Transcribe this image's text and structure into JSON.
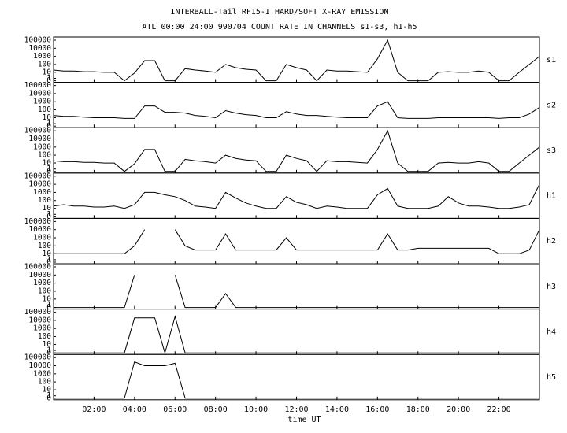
{
  "title": "INTERBALL-Tail RF15-I HARD/SOFT X-RAY EMISSION",
  "subtitle": "ATL 00:00 24:00 990704  COUNT RATE IN CHANNELS s1-s3, h1-h5",
  "chart_data": [
    {
      "type": "line",
      "name": "s1",
      "log": true,
      "color": "#000000",
      "xlim": [
        0,
        24
      ],
      "ylim": [
        0,
        100000
      ],
      "yticks": [
        0,
        1,
        10,
        100,
        1000,
        10000,
        100000
      ],
      "x": [
        0,
        0.5,
        1,
        1.5,
        2,
        2.5,
        3,
        3.5,
        4,
        4.5,
        5,
        5.5,
        6,
        6.5,
        7,
        7.5,
        8,
        8.5,
        9,
        9.5,
        10,
        10.5,
        11,
        11.5,
        12,
        12.5,
        13,
        13.5,
        14,
        14.5,
        15,
        15.5,
        16,
        16.5,
        17,
        17.5,
        18,
        18.5,
        19,
        19.5,
        20,
        20.5,
        21,
        21.5,
        22,
        22.5,
        23,
        23.5,
        24
      ],
      "values": [
        20,
        15,
        15,
        12,
        12,
        10,
        10,
        0,
        8,
        300,
        300,
        0,
        0,
        30,
        20,
        15,
        10,
        100,
        40,
        25,
        20,
        0,
        0,
        100,
        40,
        20,
        0,
        20,
        15,
        15,
        12,
        10,
        500,
        100000,
        10,
        0,
        0,
        0,
        10,
        12,
        10,
        10,
        15,
        10,
        0,
        0,
        10,
        100,
        1000
      ]
    },
    {
      "type": "line",
      "name": "s2",
      "log": true,
      "color": "#000000",
      "xlim": [
        0,
        24
      ],
      "ylim": [
        0,
        100000
      ],
      "yticks": [
        0,
        1,
        10,
        100,
        1000,
        10000,
        100000
      ],
      "x": [
        0,
        0.5,
        1,
        1.5,
        2,
        2.5,
        3,
        3.5,
        4,
        4.5,
        5,
        5.5,
        6,
        6.5,
        7,
        7.5,
        8,
        8.5,
        9,
        9.5,
        10,
        10.5,
        11,
        11.5,
        12,
        12.5,
        13,
        13.5,
        14,
        14.5,
        15,
        15.5,
        16,
        16.5,
        17,
        17.5,
        18,
        18.5,
        19,
        19.5,
        20,
        20.5,
        21,
        21.5,
        22,
        22.5,
        23,
        23.5,
        24
      ],
      "values": [
        20,
        15,
        15,
        12,
        10,
        10,
        10,
        8,
        8,
        300,
        300,
        50,
        50,
        40,
        20,
        15,
        10,
        80,
        40,
        25,
        20,
        10,
        10,
        60,
        30,
        20,
        20,
        15,
        12,
        10,
        10,
        10,
        300,
        1000,
        10,
        8,
        8,
        8,
        10,
        10,
        10,
        10,
        10,
        10,
        8,
        10,
        10,
        30,
        200
      ]
    },
    {
      "type": "line",
      "name": "s3",
      "log": true,
      "color": "#000000",
      "xlim": [
        0,
        24
      ],
      "ylim": [
        0,
        100000
      ],
      "yticks": [
        0,
        1,
        10,
        100,
        1000,
        10000,
        100000
      ],
      "x": [
        0,
        0.5,
        1,
        1.5,
        2,
        2.5,
        3,
        3.5,
        4,
        4.5,
        5,
        5.5,
        6,
        6.5,
        7,
        7.5,
        8,
        8.5,
        9,
        9.5,
        10,
        10.5,
        11,
        11.5,
        12,
        12.5,
        13,
        13.5,
        14,
        14.5,
        15,
        15.5,
        16,
        16.5,
        17,
        17.5,
        18,
        18.5,
        19,
        19.5,
        20,
        20.5,
        21,
        21.5,
        22,
        22.5,
        23,
        23.5,
        24
      ],
      "values": [
        20,
        15,
        15,
        12,
        12,
        10,
        10,
        0,
        8,
        500,
        500,
        0,
        0,
        30,
        20,
        15,
        10,
        100,
        40,
        25,
        20,
        0,
        0,
        100,
        40,
        20,
        0,
        20,
        15,
        15,
        12,
        10,
        500,
        100000,
        10,
        0,
        0,
        0,
        10,
        12,
        10,
        10,
        15,
        10,
        0,
        0,
        10,
        100,
        1000
      ]
    },
    {
      "type": "line",
      "name": "h1",
      "log": true,
      "color": "#000000",
      "xlim": [
        0,
        24
      ],
      "ylim": [
        0,
        100000
      ],
      "yticks": [
        0,
        1,
        10,
        100,
        1000,
        10000,
        100000
      ],
      "x": [
        0,
        0.5,
        1,
        1.5,
        2,
        2.5,
        3,
        3.5,
        4,
        4.5,
        5,
        5.5,
        6,
        6.5,
        7,
        7.5,
        8,
        8.5,
        9,
        9.5,
        10,
        10.5,
        11,
        11.5,
        12,
        12.5,
        13,
        13.5,
        14,
        14.5,
        15,
        15.5,
        16,
        16.5,
        17,
        17.5,
        18,
        18.5,
        19,
        19.5,
        20,
        20.5,
        21,
        21.5,
        22,
        22.5,
        23,
        23.5,
        24
      ],
      "values": [
        20,
        30,
        20,
        20,
        15,
        15,
        20,
        10,
        30,
        1000,
        1000,
        500,
        300,
        100,
        20,
        15,
        10,
        1000,
        200,
        50,
        20,
        10,
        10,
        300,
        60,
        30,
        10,
        20,
        15,
        10,
        10,
        10,
        500,
        3000,
        20,
        10,
        10,
        10,
        20,
        300,
        50,
        20,
        20,
        15,
        10,
        10,
        15,
        30,
        10000
      ]
    },
    {
      "type": "line",
      "name": "h2",
      "log": true,
      "color": "#000000",
      "xlim": [
        0,
        24
      ],
      "ylim": [
        0,
        100000
      ],
      "yticks": [
        0,
        1,
        10,
        100,
        1000,
        10000,
        100000
      ],
      "x": [
        0,
        0.5,
        1,
        1.5,
        2,
        2.5,
        3,
        3.5,
        4,
        4.5,
        5,
        5.5,
        6,
        6.5,
        7,
        7.5,
        8,
        8.5,
        9,
        9.5,
        10,
        10.5,
        11,
        11.5,
        12,
        12.5,
        13,
        13.5,
        14,
        14.5,
        15,
        15.5,
        16,
        16.5,
        17,
        17.5,
        18,
        18.5,
        19,
        19.5,
        20,
        20.5,
        21,
        21.5,
        22,
        22.5,
        23,
        23.5,
        24
      ],
      "values": [
        10,
        10,
        10,
        10,
        10,
        10,
        10,
        10,
        100,
        10000,
        null,
        null,
        10000,
        100,
        30,
        30,
        30,
        3000,
        30,
        30,
        30,
        30,
        30,
        1000,
        30,
        30,
        30,
        30,
        30,
        30,
        30,
        30,
        30,
        3000,
        30,
        30,
        50,
        50,
        50,
        50,
        50,
        50,
        50,
        50,
        10,
        10,
        10,
        30,
        10000
      ]
    },
    {
      "type": "line",
      "name": "h3",
      "log": true,
      "color": "#000000",
      "xlim": [
        0,
        24
      ],
      "ylim": [
        0,
        100000
      ],
      "yticks": [
        0,
        1,
        10,
        100,
        1000,
        10000,
        100000
      ],
      "x": [
        0,
        0.5,
        1,
        1.5,
        2,
        2.5,
        3,
        3.5,
        4,
        4.5,
        5,
        5.5,
        6,
        6.5,
        7,
        7.5,
        8,
        8.5,
        9,
        9.5,
        10,
        10.5,
        11,
        11.5,
        12,
        12.5,
        13,
        13.5,
        14,
        14.5,
        15,
        15.5,
        16,
        16.5,
        17,
        17.5,
        18,
        18.5,
        19,
        19.5,
        20,
        20.5,
        21,
        21.5,
        22,
        22.5,
        23,
        23.5,
        24
      ],
      "values": [
        0,
        0,
        0,
        0,
        0,
        0,
        0,
        0,
        10000,
        null,
        null,
        null,
        10000,
        0,
        0,
        0,
        0,
        50,
        0,
        0,
        0,
        0,
        0,
        0,
        0,
        0,
        0,
        0,
        0,
        0,
        0,
        0,
        0,
        0,
        0,
        0,
        0,
        0,
        0,
        0,
        0,
        0,
        0,
        0,
        0,
        0,
        0,
        0,
        0
      ]
    },
    {
      "type": "line",
      "name": "h4",
      "log": true,
      "color": "#000000",
      "xlim": [
        0,
        24
      ],
      "ylim": [
        0,
        100000
      ],
      "yticks": [
        0,
        1,
        10,
        100,
        1000,
        10000,
        100000
      ],
      "x": [
        0,
        0.5,
        1,
        1.5,
        2,
        2.5,
        3,
        3.5,
        4,
        4.5,
        5,
        5.5,
        6,
        6.5,
        7,
        7.5,
        8,
        8.5,
        9,
        9.5,
        10,
        10.5,
        11,
        11.5,
        12,
        12.5,
        13,
        13.5,
        14,
        14.5,
        15,
        15.5,
        16,
        16.5,
        17,
        17.5,
        18,
        18.5,
        19,
        19.5,
        20,
        20.5,
        21,
        21.5,
        22,
        22.5,
        23,
        23.5,
        24
      ],
      "values": [
        0,
        0,
        0,
        0,
        0,
        0,
        0,
        0,
        20000,
        20000,
        20000,
        0,
        30000,
        0,
        0,
        0,
        0,
        0,
        0,
        0,
        0,
        0,
        0,
        0,
        0,
        0,
        0,
        0,
        0,
        0,
        0,
        0,
        0,
        0,
        0,
        0,
        0,
        0,
        0,
        0,
        0,
        0,
        0,
        0,
        0,
        0,
        0,
        0,
        0
      ]
    },
    {
      "type": "line",
      "name": "h5",
      "log": true,
      "color": "#000000",
      "xlim": [
        0,
        24
      ],
      "ylim": [
        0,
        100000
      ],
      "yticks": [
        0,
        1,
        10,
        100,
        1000,
        10000,
        100000
      ],
      "x": [
        0,
        0.5,
        1,
        1.5,
        2,
        2.5,
        3,
        3.5,
        4,
        4.5,
        5,
        5.5,
        6,
        6.5,
        7,
        7.5,
        8,
        8.5,
        9,
        9.5,
        10,
        10.5,
        11,
        11.5,
        12,
        12.5,
        13,
        13.5,
        14,
        14.5,
        15,
        15.5,
        16,
        16.5,
        17,
        17.5,
        18,
        18.5,
        19,
        19.5,
        20,
        20.5,
        21,
        21.5,
        22,
        22.5,
        23,
        23.5,
        24
      ],
      "values": [
        0,
        0,
        0,
        0,
        0,
        0,
        0,
        0,
        30000,
        10000,
        10000,
        10000,
        20000,
        0,
        0,
        0,
        0,
        0,
        0,
        0,
        0,
        0,
        0,
        0,
        0,
        0,
        0,
        0,
        0,
        0,
        0,
        0,
        0,
        0,
        0,
        0,
        0,
        0,
        0,
        0,
        0,
        0,
        0,
        0,
        0,
        0,
        0,
        0,
        0
      ],
      "xlabel": "time UT",
      "xticks": [
        {
          "value": 2,
          "label": "02:00"
        },
        {
          "value": 4,
          "label": "04:00"
        },
        {
          "value": 6,
          "label": "06:00"
        },
        {
          "value": 8,
          "label": "08:00"
        },
        {
          "value": 10,
          "label": "10:00"
        },
        {
          "value": 12,
          "label": "12:00"
        },
        {
          "value": 14,
          "label": "14:00"
        },
        {
          "value": 16,
          "label": "16:00"
        },
        {
          "value": 18,
          "label": "18:00"
        },
        {
          "value": 20,
          "label": "20:00"
        },
        {
          "value": 22,
          "label": "22:00"
        }
      ]
    }
  ]
}
